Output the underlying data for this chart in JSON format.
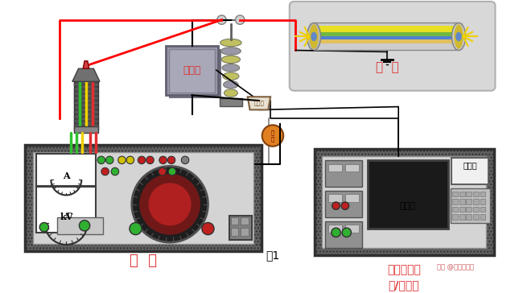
{
  "bg_color": "#ffffff",
  "title": "图1",
  "cable_label": "电  缆",
  "main_label": "主  机",
  "capacitor_label": "电容器",
  "display_label": "显示器",
  "printer_label": "打印机",
  "pulse_label": "脉冲信号发\n射/接收器",
  "watermark": "头条 @电气微社区"
}
